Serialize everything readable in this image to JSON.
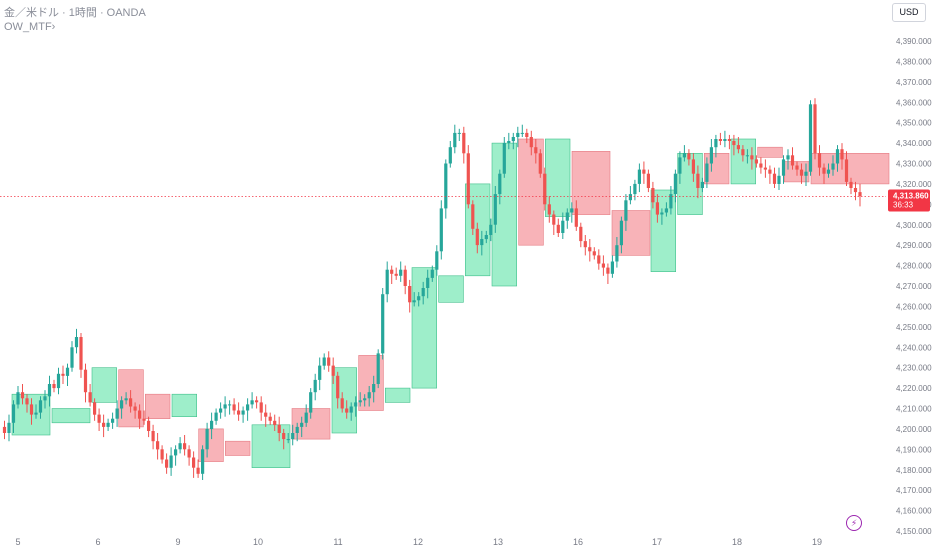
{
  "header": {
    "symbol_title": "金／米ドル · 1時間 · OANDA",
    "indicator": "OW_MTF",
    "indicator_arrow": "›"
  },
  "currency_button": "USD",
  "current_price": {
    "value": 4313.86,
    "label": "4,313.860",
    "countdown": "36:33"
  },
  "colors": {
    "up": "#26a69a",
    "down": "#ef5350",
    "up_box": "#7ee8b8",
    "down_box": "#f59aa0",
    "price_line": "#f23645",
    "axis_text": "#787b86",
    "bolt": "#9c27b0"
  },
  "icons": {
    "alert": "bolt-icon"
  },
  "chart_data": {
    "type": "candlestick",
    "y_range": [
      4150,
      4390
    ],
    "y_ticks": [
      "4,390.000",
      "4,380.000",
      "4,370.000",
      "4,360.000",
      "4,350.000",
      "4,340.000",
      "4,330.000",
      "4,320.000",
      "4,310.000",
      "4,300.000",
      "4,290.000",
      "4,280.000",
      "4,270.000",
      "4,260.000",
      "4,250.000",
      "4,240.000",
      "4,230.000",
      "4,220.000",
      "4,210.000",
      "4,200.000",
      "4,190.000",
      "4,180.000",
      "4,170.000",
      "4,160.000",
      "4,150.000"
    ],
    "x_labels": [
      "5",
      "6",
      "9",
      "10",
      "11",
      "12",
      "13",
      "16",
      "17",
      "18",
      "19"
    ],
    "grid": false,
    "candles_hourly": [
      4201,
      4198,
      4203,
      4212,
      4218,
      4215,
      4212,
      4207,
      4208,
      4214,
      4216,
      4222,
      4220,
      4227,
      4226,
      4230,
      4240,
      4245,
      4229,
      4218,
      4213,
      4207,
      4203,
      4201,
      4203,
      4205,
      4210,
      4214,
      4215,
      4211,
      4209,
      4205,
      4204,
      4199,
      4194,
      4190,
      4185,
      4181,
      4187,
      4190,
      4193,
      4190,
      4186,
      4181,
      4178,
      4190,
      4200,
      4204,
      4208,
      4210,
      4212,
      4212,
      4209,
      4207,
      4209,
      4212,
      4214,
      4213,
      4208,
      4206,
      4204,
      4202,
      4198,
      4195,
      4195,
      4198,
      4201,
      4203,
      4208,
      4218,
      4224,
      4231,
      4235,
      4231,
      4226,
      4215,
      4210,
      4208,
      4211,
      4213,
      4214,
      4215,
      4218,
      4222,
      4237,
      4266,
      4278,
      4276,
      4275,
      4278,
      4270,
      4262,
      4263,
      4265,
      4269,
      4274,
      4278,
      4287,
      4308,
      4330,
      4338,
      4345,
      4345,
      4335,
      4310,
      4298,
      4290,
      4293,
      4295,
      4300,
      4315,
      4325,
      4340,
      4341,
      4343,
      4345,
      4345,
      4343,
      4338,
      4335,
      4325,
      4310,
      4305,
      4300,
      4296,
      4302,
      4306,
      4308,
      4299,
      4292,
      4289,
      4287,
      4285,
      4281,
      4279,
      4276,
      4282,
      4290,
      4302,
      4312,
      4315,
      4320,
      4327,
      4325,
      4318,
      4311,
      4305,
      4306,
      4308,
      4315,
      4325,
      4333,
      4335,
      4332,
      4325,
      4318,
      4321,
      4330,
      4338,
      4342,
      4341,
      4342,
      4341,
      4339,
      4337,
      4334,
      4334,
      4332,
      4330,
      4328,
      4327,
      4325,
      4320,
      4324,
      4332,
      4334,
      4329,
      4327,
      4324,
      4326,
      4359,
      4335,
      4328,
      4325,
      4327,
      4330,
      4337,
      4332,
      4321,
      4318,
      4316,
      4314
    ],
    "boxes": [
      {
        "dir": "up",
        "from_day": "5",
        "open": 4197,
        "close": 4217
      },
      {
        "dir": "up",
        "from_day": "5",
        "open": 4203,
        "close": 4210
      },
      {
        "dir": "up",
        "from_day": "6",
        "open": 4213,
        "close": 4230
      },
      {
        "dir": "down",
        "from_day": "6",
        "open": 4229,
        "close": 4201
      },
      {
        "dir": "down",
        "from_day": "6",
        "open": 4217,
        "close": 4205
      },
      {
        "dir": "up",
        "from_day": "9",
        "open": 4206,
        "close": 4217
      },
      {
        "dir": "down",
        "from_day": "9",
        "open": 4200,
        "close": 4184
      },
      {
        "dir": "down",
        "from_day": "9",
        "open": 4194,
        "close": 4187
      },
      {
        "dir": "up",
        "from_day": "10",
        "open": 4181,
        "close": 4202
      },
      {
        "dir": "down",
        "from_day": "10",
        "open": 4210,
        "close": 4195
      },
      {
        "dir": "up",
        "from_day": "11",
        "open": 4198,
        "close": 4230
      },
      {
        "dir": "down",
        "from_day": "11",
        "open": 4236,
        "close": 4209
      },
      {
        "dir": "up",
        "from_day": "11",
        "open": 4213,
        "close": 4220
      },
      {
        "dir": "up",
        "from_day": "12",
        "open": 4220,
        "close": 4279
      },
      {
        "dir": "up",
        "from_day": "12",
        "open": 4262,
        "close": 4275
      },
      {
        "dir": "up",
        "from_day": "12",
        "open": 4275,
        "close": 4320
      },
      {
        "dir": "up",
        "from_day": "13",
        "open": 4270,
        "close": 4340
      },
      {
        "dir": "down",
        "from_day": "13",
        "open": 4342,
        "close": 4290
      },
      {
        "dir": "up",
        "from_day": "13",
        "open": 4304,
        "close": 4342
      },
      {
        "dir": "down",
        "from_day": "16",
        "open": 4336,
        "close": 4305
      },
      {
        "dir": "down",
        "from_day": "16",
        "open": 4307,
        "close": 4285
      },
      {
        "dir": "up",
        "from_day": "17",
        "open": 4277,
        "close": 4317
      },
      {
        "dir": "up",
        "from_day": "17",
        "open": 4305,
        "close": 4335
      },
      {
        "dir": "down",
        "from_day": "17",
        "open": 4335,
        "close": 4320
      },
      {
        "dir": "up",
        "from_day": "18",
        "open": 4320,
        "close": 4342
      },
      {
        "dir": "down",
        "from_day": "18",
        "open": 4338,
        "close": 4333
      },
      {
        "dir": "down",
        "from_day": "18",
        "open": 4331,
        "close": 4321
      },
      {
        "dir": "down",
        "from_day": "19",
        "open": 4335,
        "close": 4320
      }
    ]
  }
}
